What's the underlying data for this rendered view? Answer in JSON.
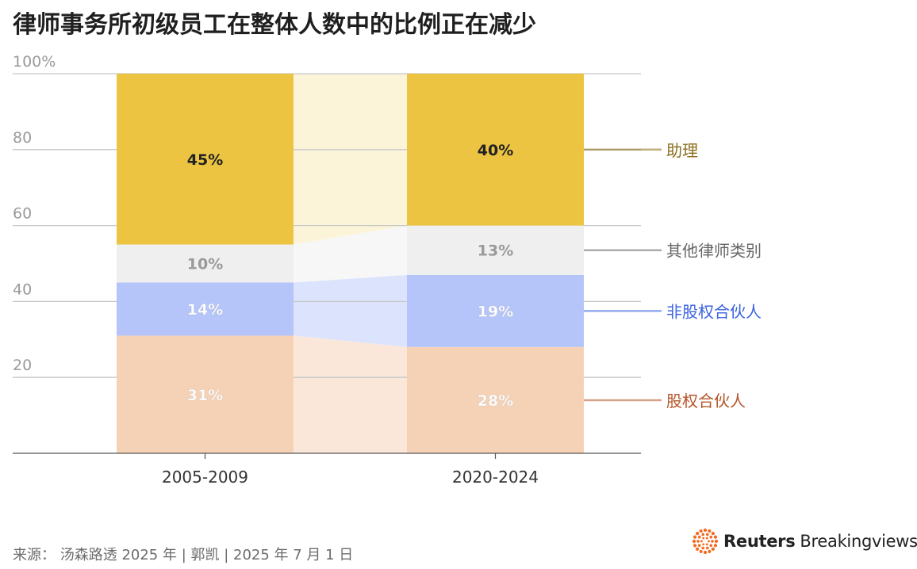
{
  "title": "律师事务所初级员工在整体人数中的比例正在减少",
  "source": "来源：  汤森路透 2025 年 | 郭凯 | 2025 年 7 月 1 日",
  "brand": {
    "name_bold": "Reuters",
    "name_light": "Breakingviews",
    "logo": "reuters-dot-ring-logo"
  },
  "colors": {
    "gridline": "#c8c8c8",
    "axis": "#555555",
    "tick_label": "#9a9a9a",
    "x_label": "#333333"
  },
  "chart_data": {
    "type": "bar",
    "stacked": true,
    "title": "律师事务所初级员工在整体人数中的比例正在减少",
    "categories": [
      "2005-2009",
      "2020-2024"
    ],
    "ylim": [
      0,
      100
    ],
    "yticks": [
      0,
      20,
      40,
      60,
      80,
      100
    ],
    "ytick_labels": [
      "",
      "20",
      "40",
      "60",
      "80",
      "100%"
    ],
    "grid": true,
    "legend_placement": "right",
    "series": [
      {
        "name": "股权合伙人",
        "values": [
          31,
          28
        ],
        "labels": [
          "31%",
          "28%"
        ],
        "color": "#f5d2b6",
        "band_color": "#fae7da",
        "legend_color": "#b5552a",
        "label_color": "#ffffff"
      },
      {
        "name": "非股权合伙人",
        "values": [
          14,
          19
        ],
        "labels": [
          "14%",
          "19%"
        ],
        "color": "#b5c5fa",
        "band_color": "#dce4fd",
        "legend_color": "#3a63e0",
        "label_color": "#ffffff"
      },
      {
        "name": "其他律师类别",
        "values": [
          10,
          13
        ],
        "labels": [
          "10%",
          "13%"
        ],
        "color": "#efefef",
        "band_color": "#f7f7f7",
        "legend_color": "#666666",
        "label_color": "#9a9a9a"
      },
      {
        "name": "助理",
        "values": [
          45,
          40
        ],
        "labels": [
          "45%",
          "40%"
        ],
        "color": "#ecc442",
        "band_color": "#fcf4d9",
        "legend_color": "#8a6d1a",
        "label_color": "#222222"
      }
    ]
  }
}
